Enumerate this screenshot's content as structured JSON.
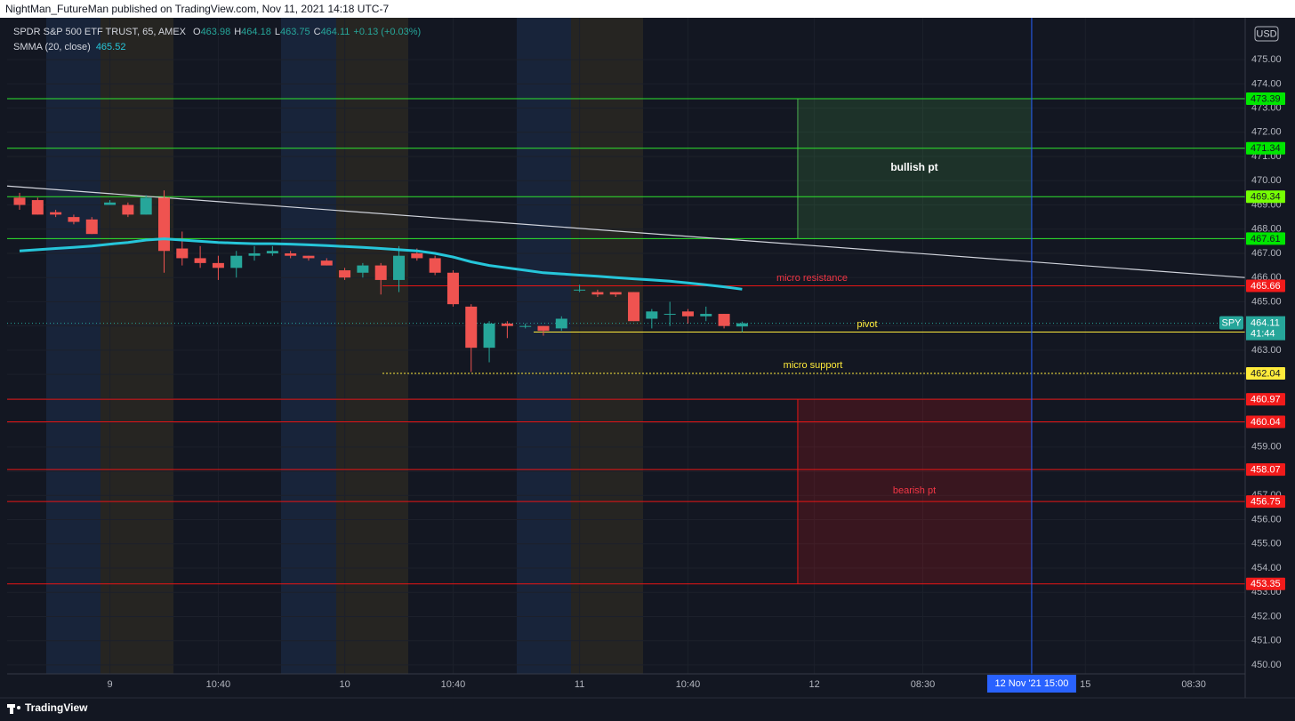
{
  "header": {
    "publisher": "NightMan_FutureMan published on TradingView.com, Nov 11, 2021 14:18 UTC-7",
    "brand": "TradingView"
  },
  "chart_data": {
    "type": "candlestick",
    "title": "SPDR S&P 500 ETF TRUST, 65, AMEX",
    "ohlc": [
      {
        "label": "O",
        "value": "463.98"
      },
      {
        "label": "H",
        "value": "464.18"
      },
      {
        "label": "L",
        "value": "463.75"
      },
      {
        "label": "C",
        "value": "464.11"
      }
    ],
    "change": "+0.13 (+0.03%)",
    "currency": "USD",
    "up_color": "#26a69a",
    "down_color": "#ef5350",
    "x": [
      0,
      1,
      2,
      3,
      4,
      5,
      6,
      7,
      8,
      9,
      10,
      11,
      12,
      13,
      14,
      15,
      16,
      17,
      18,
      19,
      20,
      21,
      22,
      23,
      24,
      25,
      26,
      27,
      28,
      29,
      30,
      31,
      32,
      33,
      34,
      35,
      36,
      37,
      38,
      39,
      40
    ],
    "open": [
      469.3,
      469.2,
      468.7,
      468.5,
      468.4,
      469.0,
      469.0,
      468.6,
      469.3,
      467.2,
      466.8,
      466.6,
      466.4,
      466.9,
      467.0,
      467.0,
      466.9,
      466.7,
      466.3,
      466.2,
      466.5,
      465.9,
      467.0,
      466.8,
      466.2,
      464.8,
      463.1,
      464.1,
      464.0,
      464.0,
      463.9,
      465.5,
      465.4,
      465.4,
      465.4,
      464.3,
      464.5,
      464.6,
      464.4,
      464.5,
      463.98
    ],
    "high": [
      469.5,
      469.3,
      468.8,
      468.6,
      468.5,
      469.2,
      469.1,
      469.4,
      469.6,
      467.9,
      467.3,
      466.9,
      467.1,
      467.3,
      467.3,
      467.1,
      466.9,
      466.8,
      466.4,
      466.6,
      466.6,
      467.3,
      467.2,
      466.9,
      466.3,
      464.9,
      464.2,
      464.2,
      464.1,
      464.0,
      464.4,
      465.7,
      465.5,
      465.4,
      465.4,
      464.7,
      465.0,
      464.7,
      464.8,
      464.5,
      464.18
    ],
    "low": [
      468.8,
      468.6,
      468.5,
      468.2,
      467.8,
      469.0,
      468.5,
      468.6,
      466.2,
      466.5,
      466.4,
      465.9,
      466.0,
      466.7,
      466.9,
      466.8,
      466.7,
      466.5,
      465.9,
      466.0,
      465.3,
      465.4,
      466.7,
      466.1,
      464.8,
      462.1,
      462.5,
      463.5,
      463.9,
      463.6,
      463.8,
      465.4,
      465.2,
      465.2,
      464.2,
      463.9,
      464.0,
      464.1,
      464.2,
      463.9,
      463.75
    ],
    "close": [
      469.0,
      468.6,
      468.6,
      468.3,
      467.8,
      469.1,
      468.6,
      469.3,
      467.1,
      466.8,
      466.6,
      466.4,
      466.9,
      467.0,
      467.1,
      466.9,
      466.8,
      466.5,
      466.0,
      466.5,
      465.9,
      466.9,
      466.8,
      466.2,
      464.9,
      463.1,
      464.1,
      464.0,
      464.0,
      463.8,
      464.3,
      465.5,
      465.3,
      465.3,
      464.2,
      464.6,
      464.5,
      464.4,
      464.5,
      464.0,
      464.11
    ],
    "indicator": {
      "name": "SMMA (20, close)",
      "value": "465.52",
      "color": "#26c6da",
      "values": [
        467.1,
        467.15,
        467.2,
        467.25,
        467.3,
        467.38,
        467.45,
        467.55,
        467.6,
        467.55,
        467.5,
        467.45,
        467.42,
        467.4,
        467.4,
        467.38,
        467.35,
        467.32,
        467.28,
        467.25,
        467.2,
        467.15,
        467.1,
        467.0,
        466.85,
        466.65,
        466.5,
        466.4,
        466.3,
        466.2,
        466.15,
        466.1,
        466.05,
        466.0,
        465.95,
        465.9,
        465.85,
        465.78,
        465.7,
        465.62,
        465.52
      ]
    },
    "last_price": {
      "symbol": "SPY",
      "value": 464.11,
      "countdown": "41:44",
      "color": "#26a69a"
    },
    "trendline": {
      "x": [
        -0.69,
        67.85
      ],
      "values": [
        469.78,
        466.0
      ],
      "color": "#d1d4dc"
    },
    "levels": [
      {
        "value": 473.39,
        "color": "#2ee62e",
        "label_color": "#00e600",
        "x_start": -0.69,
        "style": "solid"
      },
      {
        "value": 471.34,
        "color": "#2ee62e",
        "label_color": "#00e600",
        "x_start": -0.69,
        "style": "solid"
      },
      {
        "value": 469.34,
        "color": "#2ee62e",
        "label_color": "#76ff03",
        "x_start": -0.69,
        "style": "solid"
      },
      {
        "value": 467.61,
        "color": "#2ee62e",
        "label_color": "#00e600",
        "x_start": -0.69,
        "style": "solid"
      },
      {
        "value": 465.66,
        "color": "#e81515",
        "label_color": "#f21b1b",
        "x_start": 20.09,
        "style": "solid"
      },
      {
        "value": 463.75,
        "color": "#ffeb3b",
        "label_color": "#ffeb3b",
        "x_start": 28.46,
        "style": "solid"
      },
      {
        "value": 462.04,
        "color": "#ffeb3b",
        "label_color": "#ffeb3b",
        "x_start": 20.09,
        "style": "dotted"
      },
      {
        "value": 460.97,
        "color": "#e81515",
        "label_color": "#f21b1b",
        "x_start": -0.69,
        "style": "solid"
      },
      {
        "value": 460.04,
        "color": "#e81515",
        "label_color": "#f21b1b",
        "x_start": -0.69,
        "style": "solid"
      },
      {
        "value": 458.07,
        "color": "#e81515",
        "label_color": "#f21b1b",
        "x_start": -0.69,
        "style": "solid"
      },
      {
        "value": 456.75,
        "color": "#e81515",
        "label_color": "#f21b1b",
        "x_start": -0.69,
        "style": "solid"
      },
      {
        "value": 453.35,
        "color": "#e81515",
        "label_color": "#f21b1b",
        "x_start": -0.69,
        "style": "solid"
      }
    ],
    "zones": [
      {
        "x": [
          43.08,
          56.03
        ],
        "top": 473.39,
        "bottom": 467.61,
        "color": "#4caf50"
      },
      {
        "x": [
          43.08,
          56.03
        ],
        "top": 460.97,
        "bottom": 453.35,
        "color": "#e81515"
      }
    ],
    "annotations": [
      {
        "text": "bullish pt",
        "color": "#ffffff"
      },
      {
        "text": "micro resistance",
        "color": "#f23645"
      },
      {
        "text": "pivot",
        "color": "#ffeb3b"
      },
      {
        "text": "micro support",
        "color": "#ffeb3b"
      },
      {
        "text": "bearish pt",
        "color": "#f23645"
      }
    ],
    "cursor_x": 56.03,
    "xlim": [
      -0.69,
      67.85
    ],
    "xticks": [
      {
        "value": 5,
        "label": "9"
      },
      {
        "value": 11,
        "label": "10:40"
      },
      {
        "value": 18,
        "label": "10"
      },
      {
        "value": 24,
        "label": "10:40"
      },
      {
        "value": 31,
        "label": "11"
      },
      {
        "value": 37,
        "label": "10:40"
      },
      {
        "value": 44,
        "label": "12"
      },
      {
        "value": 50,
        "label": "08:30"
      },
      {
        "value": 59,
        "label": "15"
      },
      {
        "value": 65,
        "label": "08:30"
      }
    ],
    "cursor_label": "12 Nov '21   15:00",
    "ylim": [
      449.63,
      476.73
    ],
    "yticks": [
      {
        "value": 450,
        "label": "450.00"
      },
      {
        "value": 451,
        "label": "451.00"
      },
      {
        "value": 452,
        "label": "452.00"
      },
      {
        "value": 453,
        "label": "453.00"
      },
      {
        "value": 454,
        "label": "454.00"
      },
      {
        "value": 455,
        "label": "455.00"
      },
      {
        "value": 456,
        "label": "456.00"
      },
      {
        "value": 457,
        "label": "457.00"
      },
      {
        "value": 458,
        "label": "458.00"
      },
      {
        "value": 459,
        "label": "459.00"
      },
      {
        "value": 460,
        "label": "460.00"
      },
      {
        "value": 461,
        "label": "461.00"
      },
      {
        "value": 462,
        "label": "462.00"
      },
      {
        "value": 463,
        "label": "463.00"
      },
      {
        "value": 464,
        "label": "464.00"
      },
      {
        "value": 465,
        "label": "465.00"
      },
      {
        "value": 466,
        "label": "466.00"
      },
      {
        "value": 467,
        "label": "467.00"
      },
      {
        "value": 468,
        "label": "468.00"
      },
      {
        "value": 469,
        "label": "469.00"
      },
      {
        "value": 470,
        "label": "470.00"
      },
      {
        "value": 471,
        "label": "471.00"
      },
      {
        "value": 472,
        "label": "472.00"
      },
      {
        "value": 473,
        "label": "473.00"
      },
      {
        "value": 474,
        "label": "474.00"
      },
      {
        "value": 475,
        "label": "475.00"
      }
    ],
    "grid": true
  }
}
